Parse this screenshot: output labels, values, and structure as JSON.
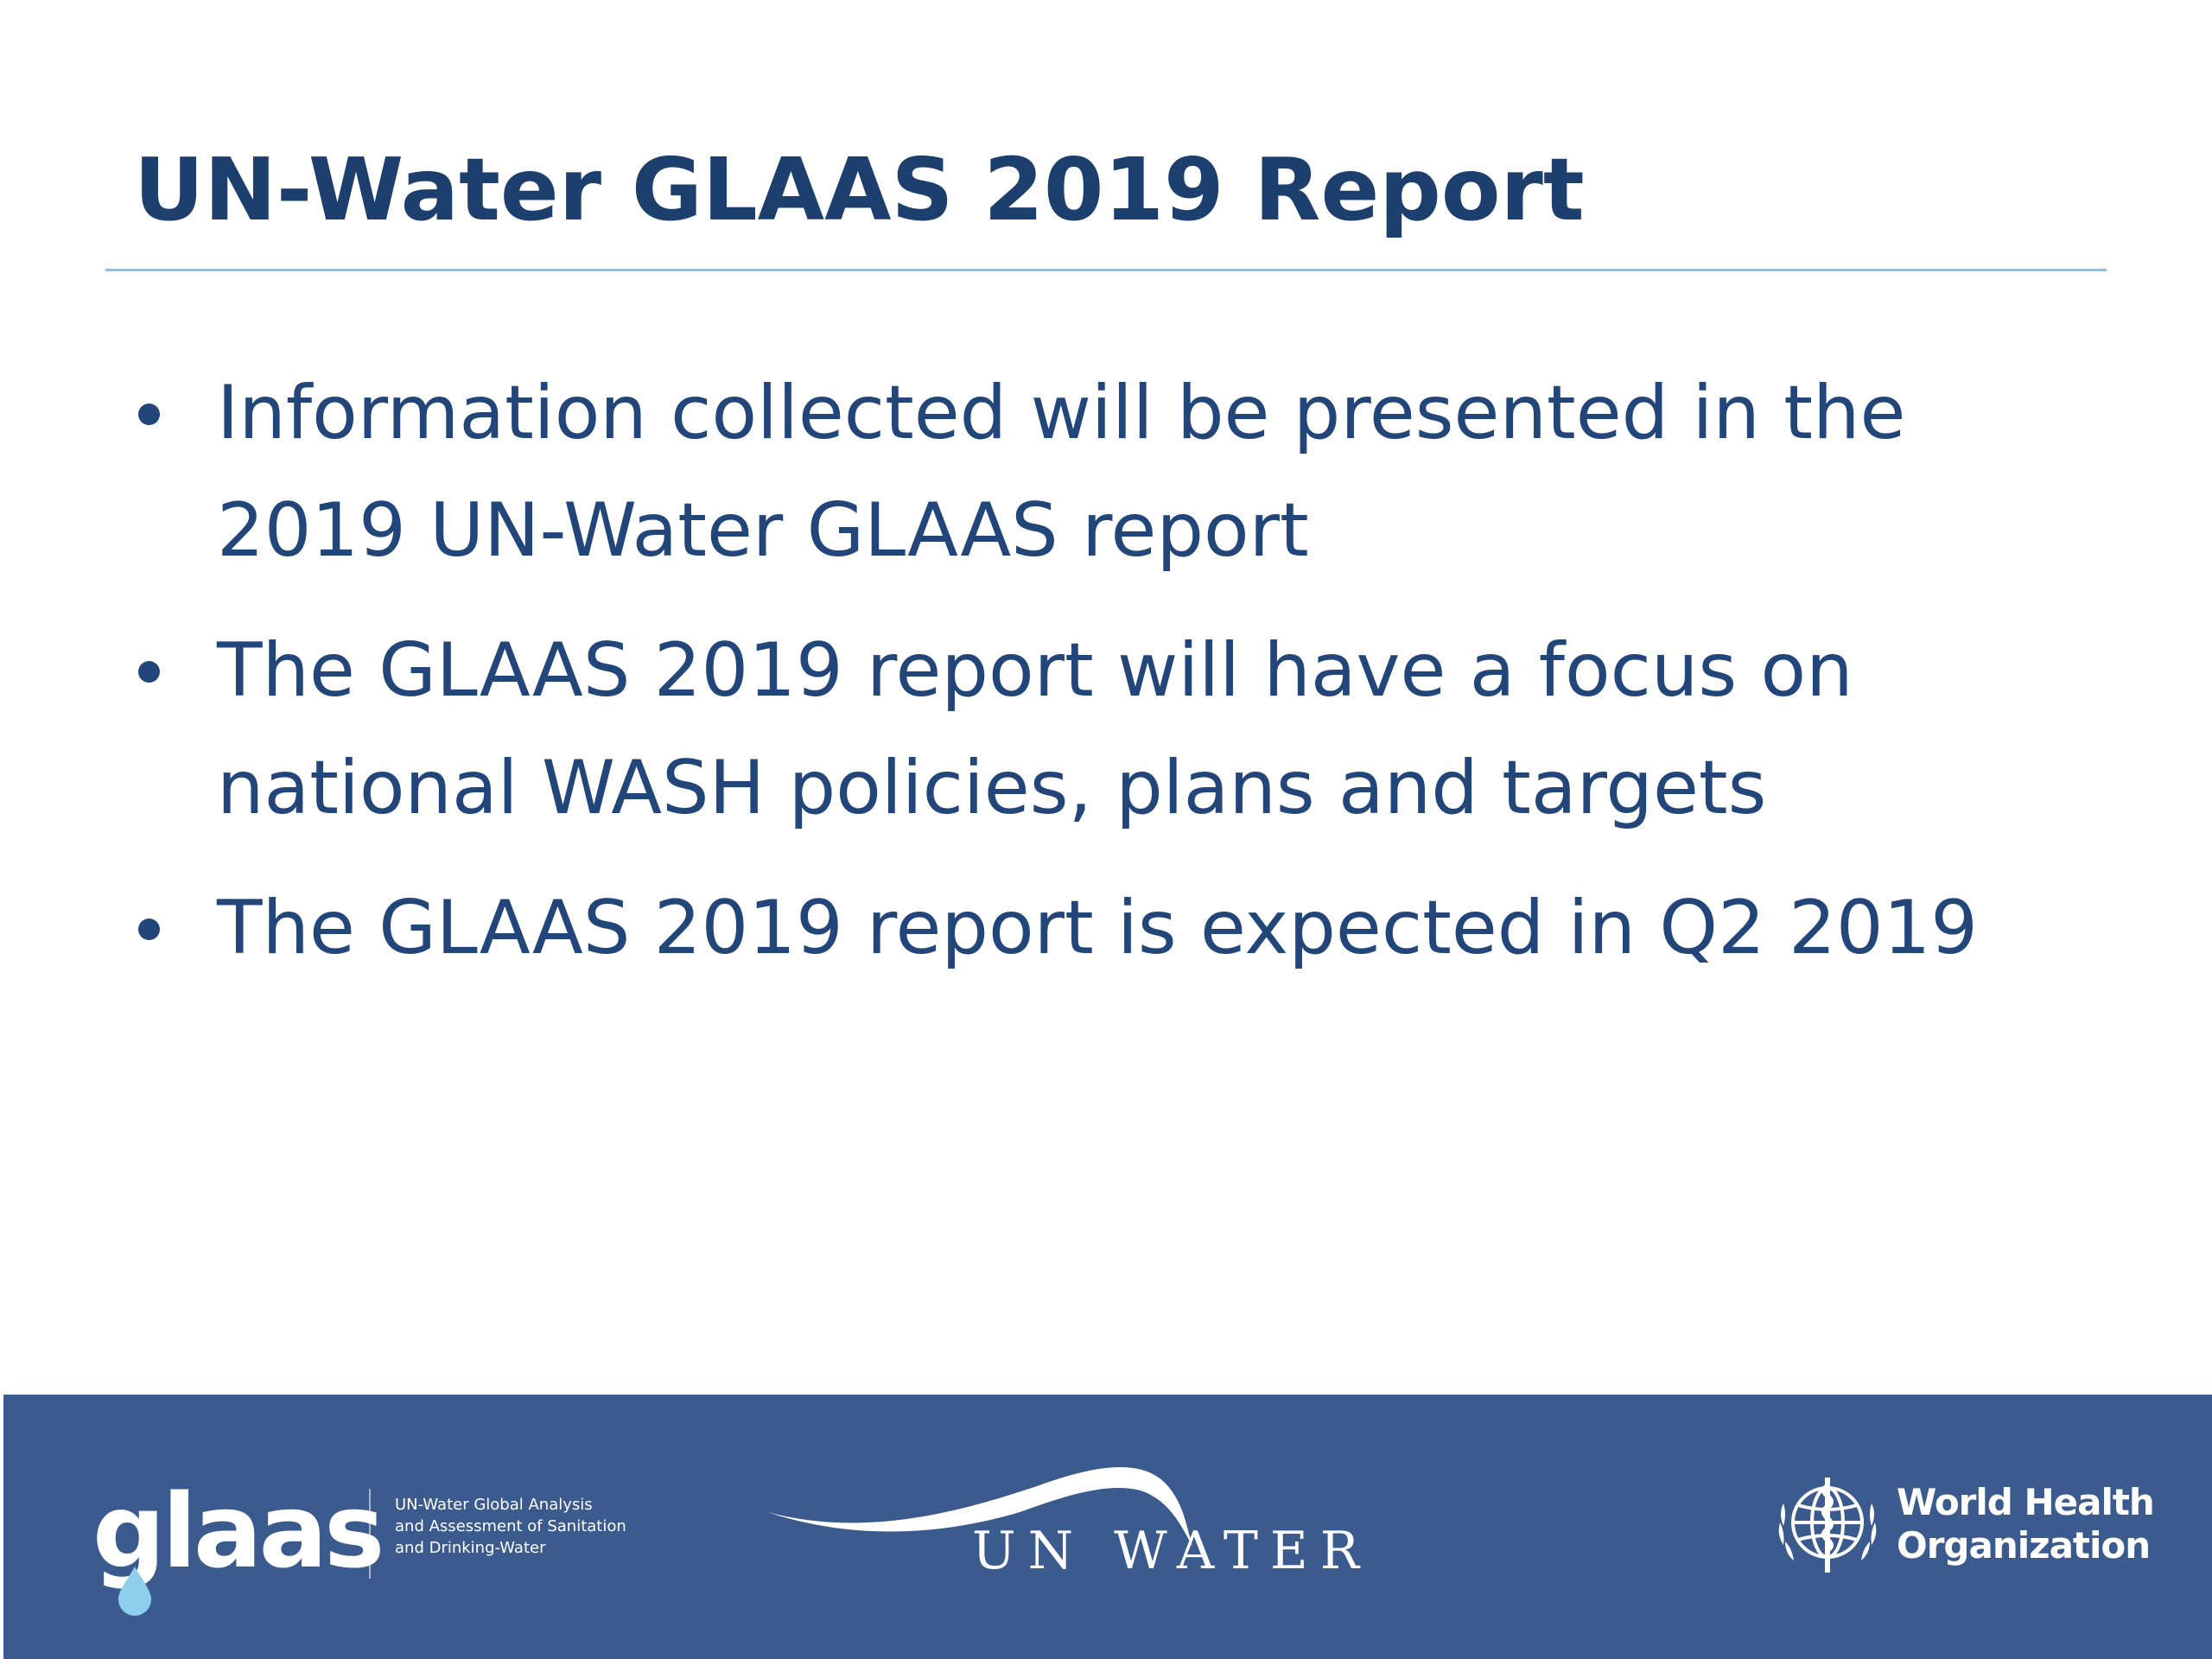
{
  "slide": {
    "title": "UN-Water GLAAS 2019 Report",
    "bullets": [
      {
        "lines": [
          "Information collected will be presented in the",
          "2019 UN-Water GLAAS report"
        ]
      },
      {
        "lines": [
          "The GLAAS 2019 report will have a focus on",
          "national WASH policies, plans and targets"
        ]
      },
      {
        "lines": [
          "The GLAAS 2019 report is expected in Q2 2019"
        ]
      }
    ]
  },
  "footer": {
    "background_color": "#3b5a8e",
    "glaas_logo": {
      "wordmark": "glaas",
      "tagline_lines": [
        "UN-Water Global Analysis",
        "and Assessment of Sanitation",
        "and Drinking-Water"
      ]
    },
    "unwater_logo": {
      "text": "UN WATER"
    },
    "who_logo": {
      "emblem": "who-emblem-icon",
      "name_lines": [
        "World Health",
        "Organization"
      ]
    }
  },
  "colors": {
    "title": "#1c3f6e",
    "body_text": "#22467a",
    "rule": "#7cc4ea",
    "drop": "#8ecfee"
  }
}
